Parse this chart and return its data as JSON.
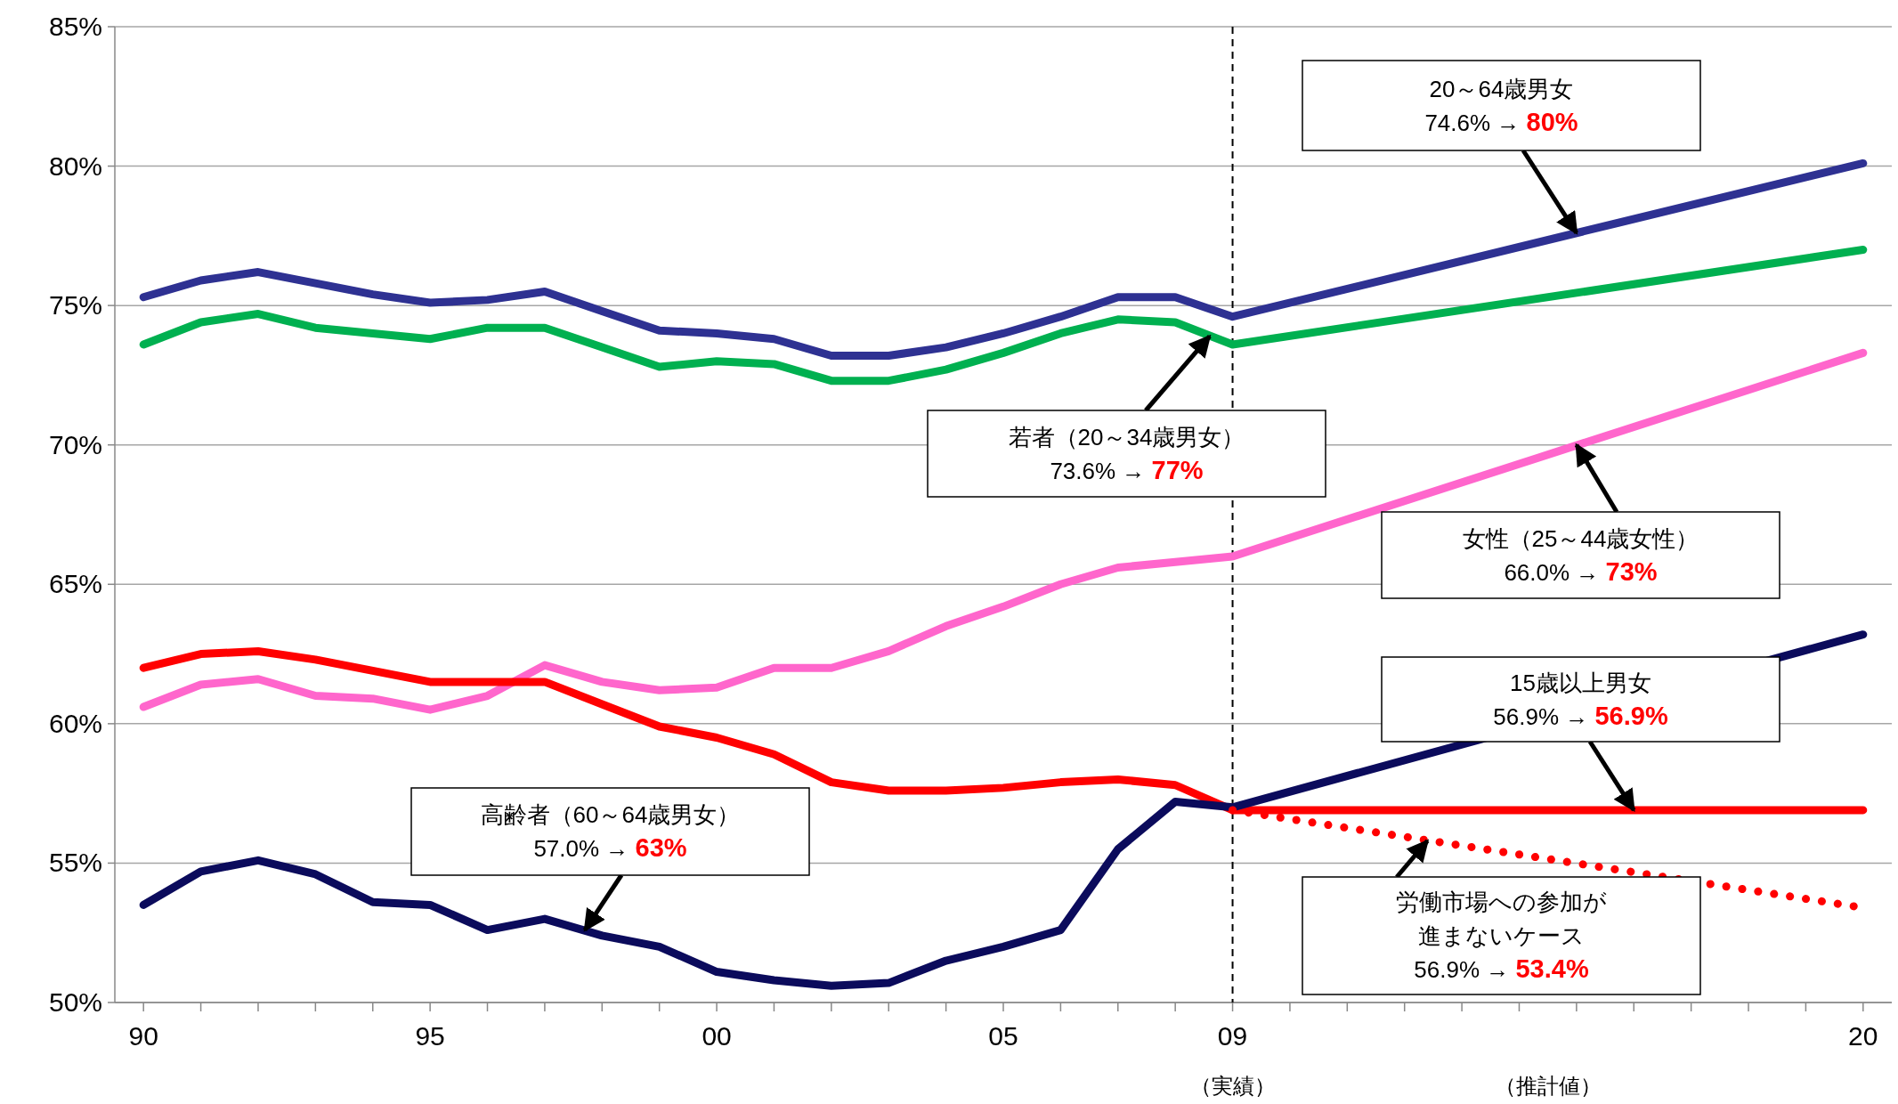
{
  "chart_data": {
    "type": "line",
    "xlim": [
      1989.5,
      2020.5
    ],
    "ylim": [
      50,
      85
    ],
    "xticks": [
      {
        "value": 1990,
        "label": "90"
      },
      {
        "value": 1991,
        "label": null
      },
      {
        "value": 1992,
        "label": null
      },
      {
        "value": 1993,
        "label": null
      },
      {
        "value": 1994,
        "label": null
      },
      {
        "value": 1995,
        "label": "95"
      },
      {
        "value": 1996,
        "label": null
      },
      {
        "value": 1997,
        "label": null
      },
      {
        "value": 1998,
        "label": null
      },
      {
        "value": 1999,
        "label": null
      },
      {
        "value": 2000,
        "label": "00"
      },
      {
        "value": 2001,
        "label": null
      },
      {
        "value": 2002,
        "label": null
      },
      {
        "value": 2003,
        "label": null
      },
      {
        "value": 2004,
        "label": null
      },
      {
        "value": 2005,
        "label": "05"
      },
      {
        "value": 2006,
        "label": null
      },
      {
        "value": 2007,
        "label": null
      },
      {
        "value": 2008,
        "label": null
      },
      {
        "value": 2009,
        "label": "09"
      },
      {
        "value": 2010,
        "label": null
      },
      {
        "value": 2011,
        "label": null
      },
      {
        "value": 2012,
        "label": null
      },
      {
        "value": 2013,
        "label": null
      },
      {
        "value": 2014,
        "label": null
      },
      {
        "value": 2015,
        "label": null
      },
      {
        "value": 2016,
        "label": null
      },
      {
        "value": 2017,
        "label": null
      },
      {
        "value": 2018,
        "label": null
      },
      {
        "value": 2019,
        "label": null
      },
      {
        "value": 2020,
        "label": "20"
      }
    ],
    "yticks": [
      {
        "value": 50,
        "label": "50%"
      },
      {
        "value": 55,
        "label": "55%"
      },
      {
        "value": 60,
        "label": "60%"
      },
      {
        "value": 65,
        "label": "65%"
      },
      {
        "value": 70,
        "label": "70%"
      },
      {
        "value": 75,
        "label": "75%"
      },
      {
        "value": 80,
        "label": "80%"
      },
      {
        "value": 85,
        "label": "85%"
      }
    ],
    "grid": "y",
    "marker": "none",
    "series": [
      {
        "color": "#2e3192",
        "x": [
          1990,
          1991,
          1992,
          1993,
          1994,
          1995,
          1996,
          1997,
          1998,
          1999,
          2000,
          2001,
          2002,
          2003,
          2004,
          2005,
          2006,
          2007,
          2008,
          2009,
          2020
        ],
        "values": [
          75.3,
          75.9,
          76.2,
          75.8,
          75.4,
          75.1,
          75.2,
          75.5,
          74.8,
          74.1,
          74.0,
          73.8,
          73.2,
          73.2,
          73.5,
          74.0,
          74.6,
          75.3,
          75.3,
          74.6,
          80.1
        ]
      },
      {
        "color": "#00b050",
        "x": [
          1990,
          1991,
          1992,
          1993,
          1994,
          1995,
          1996,
          1997,
          1998,
          1999,
          2000,
          2001,
          2002,
          2003,
          2004,
          2005,
          2006,
          2007,
          2008,
          2009,
          2020
        ],
        "values": [
          73.6,
          74.4,
          74.7,
          74.2,
          74.0,
          73.8,
          74.2,
          74.2,
          73.5,
          72.8,
          73.0,
          72.9,
          72.3,
          72.3,
          72.7,
          73.3,
          74.0,
          74.5,
          74.4,
          73.6,
          77.0
        ]
      },
      {
        "color": "#ff66cc",
        "x": [
          1990,
          1991,
          1992,
          1993,
          1994,
          1995,
          1996,
          1997,
          1998,
          1999,
          2000,
          2001,
          2002,
          2003,
          2004,
          2005,
          2006,
          2007,
          2008,
          2009,
          2020
        ],
        "values": [
          60.6,
          61.4,
          61.6,
          61.0,
          60.9,
          60.5,
          61.0,
          62.1,
          61.5,
          61.2,
          61.3,
          62.0,
          62.0,
          62.6,
          63.5,
          64.2,
          65.0,
          65.6,
          65.8,
          66.0,
          73.3
        ]
      },
      {
        "color": "#ff0000",
        "x": [
          1990,
          1991,
          1992,
          1993,
          1994,
          1995,
          1996,
          1997,
          1998,
          1999,
          2000,
          2001,
          2002,
          2003,
          2004,
          2005,
          2006,
          2007,
          2008,
          2009,
          2020
        ],
        "values": [
          62.0,
          62.5,
          62.6,
          62.3,
          61.9,
          61.5,
          61.5,
          61.5,
          60.7,
          59.9,
          59.5,
          58.9,
          57.9,
          57.6,
          57.6,
          57.7,
          57.9,
          58.0,
          57.8,
          56.9,
          56.9
        ]
      },
      {
        "color": "#0b0b5c",
        "x": [
          1990,
          1991,
          1992,
          1993,
          1994,
          1995,
          1996,
          1997,
          1998,
          1999,
          2000,
          2001,
          2002,
          2003,
          2004,
          2005,
          2006,
          2007,
          2008,
          2009,
          2020
        ],
        "values": [
          53.5,
          54.7,
          55.1,
          54.6,
          53.6,
          53.5,
          52.6,
          53.0,
          52.4,
          52.0,
          51.1,
          50.8,
          50.6,
          50.7,
          51.5,
          52.0,
          52.6,
          55.5,
          57.2,
          57.0,
          63.2
        ]
      },
      {
        "color": "#ff0000",
        "line_style": "dotted",
        "x": [
          2009,
          2020
        ],
        "values": [
          56.9,
          53.4
        ]
      }
    ],
    "ref_lines": [
      {
        "axis": "x",
        "value": 2009,
        "line_style": "dashed",
        "color": "#000000"
      }
    ],
    "annotations": [
      {
        "text": "20～64歳男女\n74.6% → 80%",
        "x": 2015,
        "y": 77.6
      },
      {
        "text": "若者（20～34歳男女）\n73.6% → 77%",
        "x": 2008.6,
        "y": 73.9
      },
      {
        "text": "女性（25～44歳女性）\n66.0% → 73%",
        "x": 2015,
        "y": 70.0
      },
      {
        "text": "15歳以上男女\n56.9% → 56.9%",
        "x": 2016,
        "y": 56.9
      },
      {
        "text": "高齢者（60～64歳男女）\n57.0% → 63%",
        "x": 1997.7,
        "y": 52.6
      },
      {
        "text": "労働市場への参加が進まないケース\n56.9% → 53.4%",
        "x": 2012.4,
        "y": 55.8
      },
      "（実績）",
      "（推計値）"
    ]
  }
}
